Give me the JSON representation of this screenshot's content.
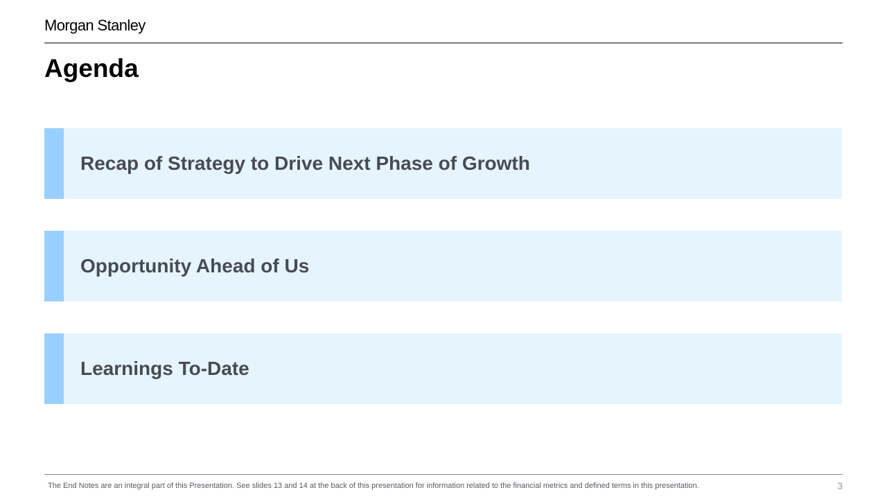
{
  "header": {
    "logo_text": "Morgan Stanley",
    "title": "Agenda"
  },
  "agenda": {
    "items": [
      {
        "label": "Recap of Strategy to Drive Next Phase of Growth"
      },
      {
        "label": "Opportunity Ahead of Us"
      },
      {
        "label": "Learnings To-Date"
      }
    ]
  },
  "footer": {
    "note": "The End Notes are an integral part of this Presentation. See slides 13 and 14 at the back of this presentation for information related to the financial metrics and defined terms in this presentation.",
    "page_number": "3"
  },
  "colors": {
    "item_background": "#e6f4fe",
    "accent_bar": "#99cfff",
    "item_text": "#474b52"
  }
}
